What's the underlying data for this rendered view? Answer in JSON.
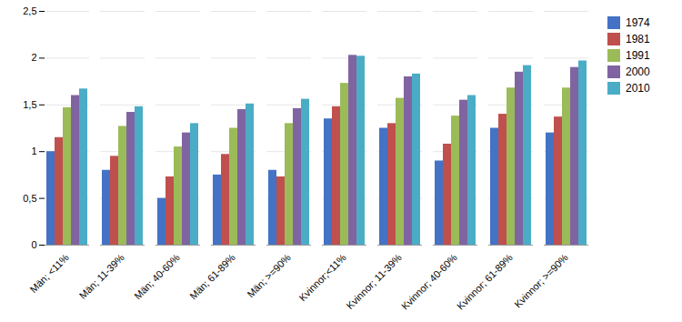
{
  "chart_data": {
    "type": "bar",
    "categories": [
      "Män; <11%",
      "Män; 11-39%",
      "Män; 40-60%",
      "Män; 61-89%",
      "Män; >=90%",
      "Kvinnor;<11%",
      "Kvinnor; 11-39%",
      "Kvinnor; 40-60%",
      "Kvinnor; 61-89%",
      "Kvinnor; >=90%"
    ],
    "series": [
      {
        "name": "1974",
        "color": "#4472C4",
        "values": [
          1.0,
          0.8,
          0.5,
          0.75,
          0.8,
          1.35,
          1.25,
          0.9,
          1.25,
          1.2
        ]
      },
      {
        "name": "1981",
        "color": "#C0504D",
        "values": [
          1.15,
          0.95,
          0.73,
          0.97,
          0.73,
          1.48,
          1.3,
          1.08,
          1.4,
          1.37
        ]
      },
      {
        "name": "1991",
        "color": "#9BBB59",
        "values": [
          1.47,
          1.27,
          1.05,
          1.25,
          1.3,
          1.73,
          1.57,
          1.38,
          1.68,
          1.68
        ]
      },
      {
        "name": "2000",
        "color": "#8064A2",
        "values": [
          1.6,
          1.42,
          1.2,
          1.45,
          1.46,
          2.03,
          1.8,
          1.55,
          1.85,
          1.9
        ]
      },
      {
        "name": "2010",
        "color": "#4BACC6",
        "values": [
          1.67,
          1.48,
          1.3,
          1.51,
          1.56,
          2.02,
          1.83,
          1.6,
          1.92,
          1.97
        ]
      }
    ],
    "ylim": [
      0,
      2.5
    ],
    "yticks": [
      0,
      {
        "value": 0.5,
        "label": "0,5"
      },
      1,
      {
        "value": 1.5,
        "label": "1,5"
      },
      2,
      {
        "value": 2.5,
        "label": "2,5"
      }
    ],
    "grid": true,
    "legend": "right"
  }
}
